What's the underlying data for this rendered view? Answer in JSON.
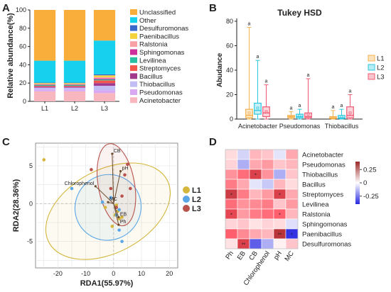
{
  "panels": {
    "a": {
      "letter": "A"
    },
    "b": {
      "letter": "B"
    },
    "c": {
      "letter": "C"
    },
    "d": {
      "letter": "D"
    }
  },
  "chart_data": [
    {
      "panel": "A",
      "type": "bar",
      "stacked": true,
      "categories": [
        "L1",
        "L2",
        "L3"
      ],
      "ylabel": "Relative abundance(%)",
      "ylim": [
        0,
        100
      ],
      "yticks": [
        0,
        20,
        40,
        60,
        80,
        100
      ],
      "legend_position": "right",
      "series": [
        {
          "name": "Acinetobacter",
          "color": "#f8b7be",
          "values": [
            11,
            11,
            9
          ]
        },
        {
          "name": "Pseudomonas",
          "color": "#d8a9f2",
          "values": [
            2,
            2,
            3
          ]
        },
        {
          "name": "Thiobacillus",
          "color": "#c3bdf5",
          "values": [
            2,
            2,
            5
          ]
        },
        {
          "name": "Bacillus",
          "color": "#a13a8c",
          "values": [
            1,
            1,
            3
          ]
        },
        {
          "name": "Streptomyces",
          "color": "#f4564e",
          "values": [
            1,
            1,
            3
          ]
        },
        {
          "name": "Levilinea",
          "color": "#27c0a2",
          "values": [
            1,
            1,
            1
          ]
        },
        {
          "name": "Sphingomonas",
          "color": "#ce2f9c",
          "values": [
            0.5,
            0.5,
            1
          ]
        },
        {
          "name": "Ralstonia",
          "color": "#f7a1a6",
          "values": [
            0.5,
            0.5,
            1.5
          ]
        },
        {
          "name": "Paenibacillus",
          "color": "#f4d23b",
          "values": [
            1,
            1,
            2
          ]
        },
        {
          "name": "Desulfuromonas",
          "color": "#3a68c9",
          "values": [
            0.5,
            0.5,
            1
          ]
        },
        {
          "name": "Other",
          "color": "#16d0ee",
          "values": [
            24,
            24,
            37
          ]
        },
        {
          "name": "Unclassified",
          "color": "#f9ad3a",
          "values": [
            55.5,
            55.5,
            33.5
          ]
        }
      ]
    },
    {
      "panel": "B",
      "type": "box",
      "title": "Tukey HSD",
      "ylabel": "Abudance",
      "ylim": [
        0,
        80
      ],
      "yticks": [
        0,
        20,
        40,
        60,
        80
      ],
      "categories": [
        "Acinetobacter",
        "Pseudomonas",
        "Thiobacillus"
      ],
      "series": [
        {
          "name": "L1",
          "color": "#f5b04a",
          "boxes": [
            {
              "min": 0,
              "q1": 1,
              "median": 3,
              "q3": 8,
              "max": 75,
              "mean": 5,
              "letter": "a"
            },
            {
              "min": 0,
              "q1": 1,
              "median": 2,
              "q3": 3,
              "max": 6,
              "mean": 2,
              "letter": "a"
            },
            {
              "min": 0,
              "q1": 0.5,
              "median": 1,
              "q3": 2,
              "max": 7,
              "mean": 1,
              "letter": "a"
            }
          ]
        },
        {
          "name": "L2",
          "color": "#2fc8e0",
          "boxes": [
            {
              "min": 0,
              "q1": 4,
              "median": 7,
              "q3": 13,
              "max": 48,
              "mean": 9,
              "letter": "a"
            },
            {
              "min": 0,
              "q1": 1,
              "median": 2,
              "q3": 4,
              "max": 8,
              "mean": 3,
              "letter": "a"
            },
            {
              "min": 0,
              "q1": 0.5,
              "median": 1,
              "q3": 3,
              "max": 8,
              "mean": 2,
              "letter": "a"
            }
          ]
        },
        {
          "name": "L3",
          "color": "#ef5a73",
          "boxes": [
            {
              "min": 0,
              "q1": 2,
              "median": 5,
              "q3": 10,
              "max": 28,
              "mean": 6,
              "letter": "a"
            },
            {
              "min": 0,
              "q1": 1,
              "median": 2,
              "q3": 5,
              "max": 33,
              "mean": 4,
              "letter": "a"
            },
            {
              "min": 0,
              "q1": 1,
              "median": 3,
              "q3": 10,
              "max": 20,
              "mean": 5,
              "letter": "a"
            }
          ]
        }
      ]
    },
    {
      "panel": "C",
      "type": "scatter",
      "xlabel": "RDA1(55.97%)",
      "ylabel": "RDA2(28.36%)",
      "xlim": [
        -28,
        23
      ],
      "ylim": [
        -8.5,
        8
      ],
      "xticks": [
        -20,
        -10,
        0,
        10,
        20
      ],
      "yticks": [
        -5,
        0,
        5
      ],
      "grid": true,
      "legend_position": "right",
      "series": [
        {
          "name": "L1",
          "color": "#d4b63c",
          "points": [
            [
              -25,
              5.8
            ],
            [
              -3,
              -0.5
            ],
            [
              0.5,
              -1.5
            ],
            [
              1.5,
              -1
            ],
            [
              2,
              -2
            ],
            [
              -0.5,
              -3
            ],
            [
              1,
              -0.2
            ],
            [
              3,
              -1.8
            ]
          ],
          "ellipse": {
            "cx": -2,
            "cy": -1,
            "rx": 24,
            "ry": 5.5,
            "angle": -28
          }
        },
        {
          "name": "L2",
          "color": "#5aa6e6",
          "points": [
            [
              -15,
              2
            ],
            [
              -4,
              0.2
            ],
            [
              2,
              -3.5
            ],
            [
              3,
              -5
            ],
            [
              1,
              -1.5
            ],
            [
              -1,
              0.8
            ],
            [
              2,
              -0.8
            ]
          ],
          "ellipse": {
            "cx": -2,
            "cy": -0.5,
            "rx": 12,
            "ry": 4.3,
            "angle": -42
          }
        },
        {
          "name": "L3",
          "color": "#b9534d",
          "points": [
            [
              -8,
              4.5
            ],
            [
              5,
              5.2
            ],
            [
              4,
              3.8
            ],
            [
              6,
              2
            ],
            [
              3,
              1
            ],
            [
              1,
              -0.5
            ],
            [
              -1,
              2
            ]
          ],
          "ellipse": {
            "cx": 1,
            "cy": 2.5,
            "rx": 6.5,
            "ry": 5.5,
            "angle": -10
          }
        }
      ],
      "vectors": [
        {
          "label": "CB",
          "x": -0.5,
          "y": 6.6
        },
        {
          "label": "pH",
          "x": 2.5,
          "y": 4.3
        },
        {
          "label": "Chlorophenol",
          "x": -6.5,
          "y": 2.3
        },
        {
          "label": "MC",
          "x": -2,
          "y": 0.2
        },
        {
          "label": "EB",
          "x": 1.8,
          "y": -1.8
        },
        {
          "label": "Ph",
          "x": 1.8,
          "y": -2.8
        }
      ]
    },
    {
      "panel": "D",
      "type": "heatmap",
      "rows": [
        "Acinetobacter",
        "Pseudomonas",
        "Thiobacillus",
        "Bacillus",
        "Streptomyces",
        "Levilinea",
        "Ralstonia",
        "Sphingomonas",
        "Paenibacillus",
        "Desulfuromonas"
      ],
      "columns": [
        "Ph",
        "EB",
        "CB",
        "Chlorophenol",
        "pH",
        "MC"
      ],
      "values": [
        [
          0.05,
          -0.08,
          0.1,
          0.08,
          -0.05,
          0.12
        ],
        [
          0.06,
          -0.15,
          0.12,
          0.14,
          0.08,
          0.1
        ],
        [
          0.15,
          0.2,
          0.3,
          0.15,
          -0.15,
          0.08
        ],
        [
          0.18,
          0.12,
          -0.05,
          -0.1,
          0.1,
          0.05
        ],
        [
          0.32,
          0.18,
          0.1,
          0.14,
          0.3,
          0.12
        ],
        [
          0.2,
          0.15,
          0.16,
          0.18,
          0.08,
          0.14
        ],
        [
          0.28,
          0.14,
          0.18,
          0.2,
          0.22,
          0.1
        ],
        [
          0.06,
          0.08,
          0.04,
          0.06,
          0.05,
          -0.06
        ],
        [
          0.22,
          0.16,
          0.12,
          0.1,
          0.35,
          -0.38
        ],
        [
          0.04,
          0.3,
          -0.3,
          -0.15,
          0.02,
          0.08
        ]
      ],
      "significance": [
        [
          "",
          "",
          "",
          "",
          "",
          ""
        ],
        [
          "",
          "",
          "",
          "",
          "",
          ""
        ],
        [
          "",
          "",
          "*",
          "",
          "",
          ""
        ],
        [
          "",
          "",
          "",
          "",
          "",
          ""
        ],
        [
          "*",
          "",
          "",
          "",
          "*",
          ""
        ],
        [
          "",
          "",
          "",
          "",
          "",
          ""
        ],
        [
          "*",
          "",
          "",
          "",
          "*",
          ""
        ],
        [
          "",
          "",
          "",
          "",
          "",
          ""
        ],
        [
          "",
          "",
          "",
          "",
          "**",
          "*"
        ],
        [
          "",
          "**",
          "",
          "",
          "",
          ""
        ]
      ],
      "colorbar_ticks": [
        "0.25",
        "0",
        "-0.25"
      ],
      "colorbar_values": [
        0.25,
        0,
        -0.25
      ],
      "vlim": [
        -0.4,
        0.4
      ]
    }
  ]
}
